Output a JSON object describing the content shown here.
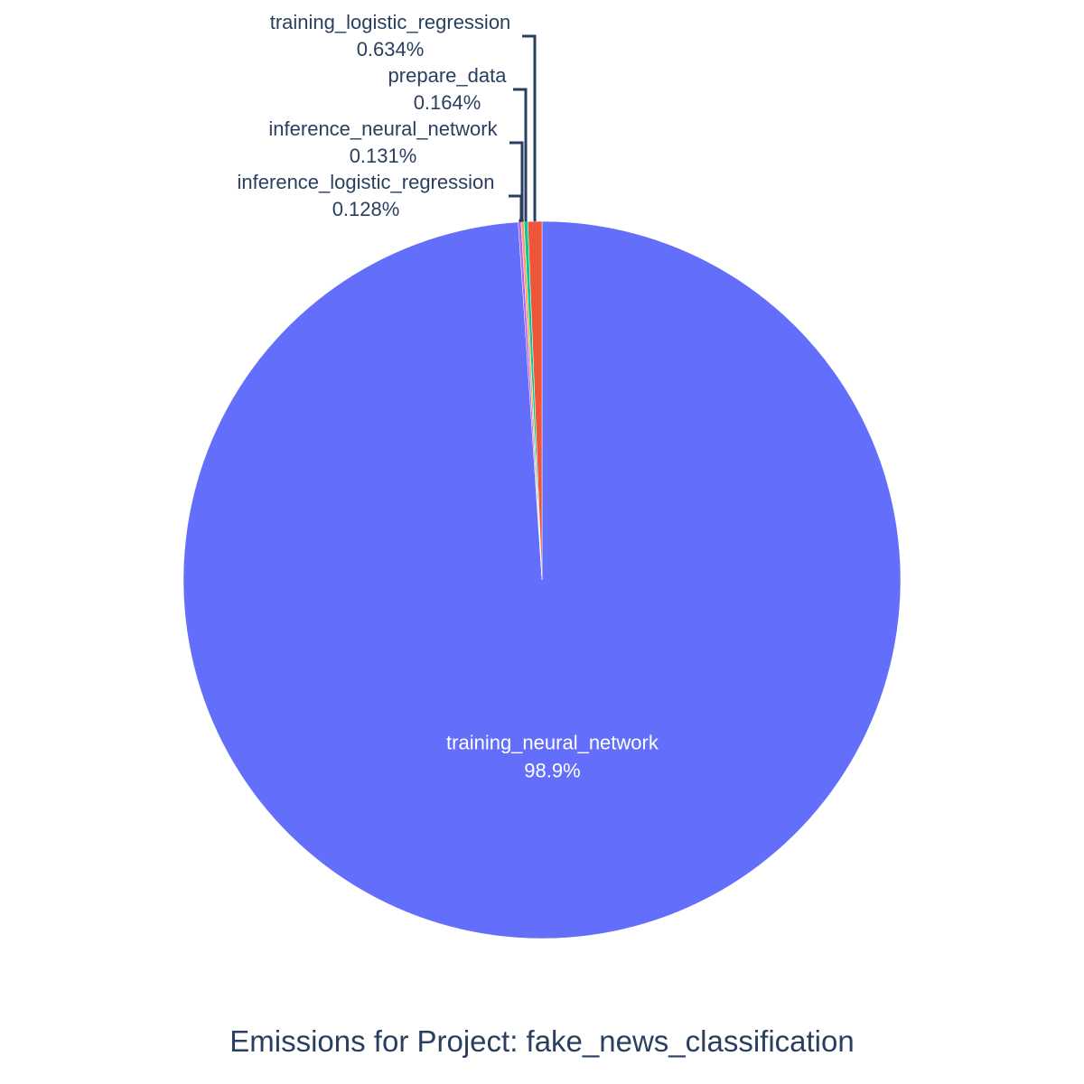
{
  "chart_data": {
    "type": "pie",
    "title": "Emissions for Project: fake_news_classification",
    "direction": "clockwise",
    "start_angle": "12 o'clock",
    "label_color": "#2a3f5f",
    "inside_label_color": "#ffffff",
    "slices": [
      {
        "label": "training_neural_network",
        "percent_text": "98.9%",
        "value": 98.943,
        "color": "#636efa",
        "label_position": "inside"
      },
      {
        "label": "inference_logistic_regression",
        "percent_text": "0.128%",
        "value": 0.128,
        "color": "#ab63fa",
        "label_position": "outside"
      },
      {
        "label": "inference_neural_network",
        "percent_text": "0.131%",
        "value": 0.131,
        "color": "#ffa15a",
        "label_position": "outside"
      },
      {
        "label": "prepare_data",
        "percent_text": "0.164%",
        "value": 0.164,
        "color": "#00cc96",
        "label_position": "outside"
      },
      {
        "label": "training_logistic_regression",
        "percent_text": "0.634%",
        "value": 0.634,
        "color": "#ef553b",
        "label_position": "outside"
      }
    ]
  }
}
